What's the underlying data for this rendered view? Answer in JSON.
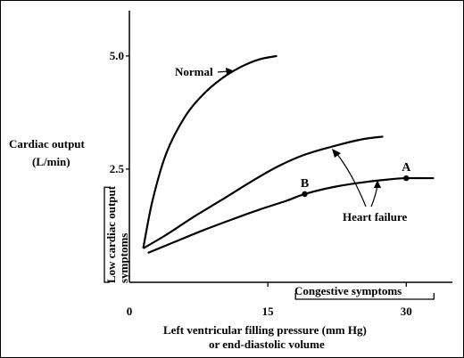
{
  "chart_data": {
    "type": "line",
    "title": "",
    "ylabel_lines": [
      "Cardiac output",
      "(L/min)"
    ],
    "xlabel_lines": [
      "Left ventricular filling pressure (mm Hg)",
      "or end-diastolic volume"
    ],
    "xlim": [
      0,
      35
    ],
    "ylim": [
      0,
      6
    ],
    "xticks": [
      0,
      15,
      30
    ],
    "xtick_labels": [
      "0",
      "15",
      "30"
    ],
    "yticks": [
      2.5,
      5.0
    ],
    "ytick_labels": [
      "2.5",
      "5.0"
    ],
    "series": [
      {
        "name": "Normal",
        "x": [
          1.5,
          2.5,
          4,
          6,
          8,
          10,
          12,
          14,
          16
        ],
        "y": [
          0.75,
          1.8,
          2.85,
          3.65,
          4.15,
          4.5,
          4.75,
          4.92,
          5.0
        ]
      },
      {
        "name": "",
        "x": [
          1.5,
          4,
          7,
          10,
          13,
          16,
          19,
          22,
          25,
          27.5
        ],
        "y": [
          0.75,
          1.05,
          1.45,
          1.82,
          2.2,
          2.55,
          2.82,
          3.0,
          3.15,
          3.22
        ]
      },
      {
        "name": "",
        "x": [
          2,
          5,
          8,
          11,
          14,
          17,
          19,
          22,
          25,
          28,
          30,
          33
        ],
        "y": [
          0.65,
          0.9,
          1.15,
          1.38,
          1.6,
          1.8,
          1.95,
          2.1,
          2.2,
          2.27,
          2.3,
          2.3
        ]
      }
    ],
    "points": [
      {
        "label": "B",
        "x": 19,
        "y": 1.95
      },
      {
        "label": "A",
        "x": 30,
        "y": 2.3
      }
    ],
    "annotations": {
      "normal_label": "Normal",
      "heart_failure_label": "Heart failure",
      "low_output_bracket": [
        "Low cardiac output",
        "symptoms"
      ],
      "congestive_bracket": "Congestive symptoms"
    },
    "low_output_threshold": 2.1,
    "congestive_range": [
      18,
      33
    ],
    "grid": false
  }
}
